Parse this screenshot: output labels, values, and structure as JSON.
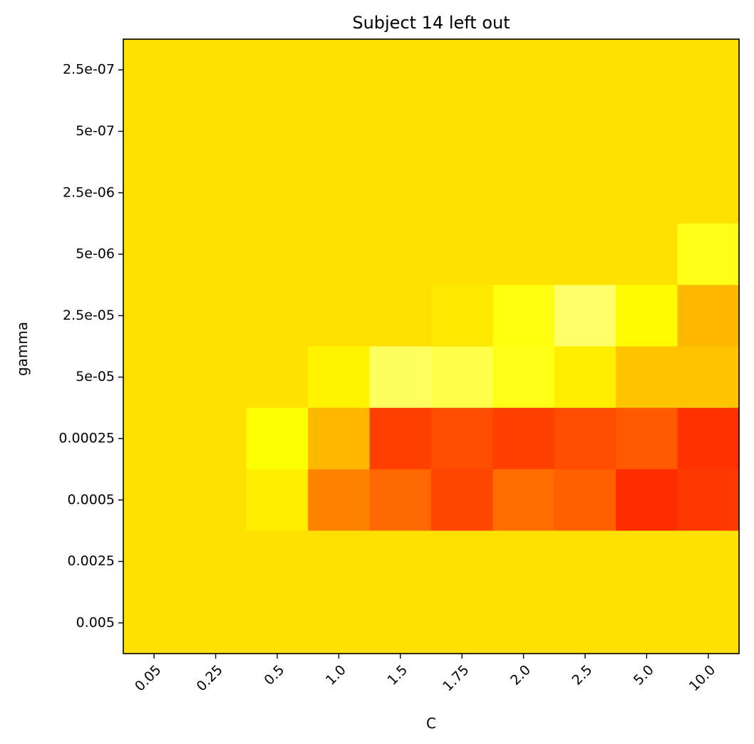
{
  "chart_data": {
    "type": "heatmap",
    "title": "Subject 14 left out",
    "xlabel": "C",
    "ylabel": "gamma",
    "x_categories": [
      "0.05",
      "0.25",
      "0.5",
      "1.0",
      "1.5",
      "1.75",
      "2.0",
      "2.5",
      "5.0",
      "10.0"
    ],
    "y_categories": [
      "2.5e-07",
      "5e-07",
      "2.5e-06",
      "5e-06",
      "2.5e-05",
      "5e-05",
      "0.00025",
      "0.0005",
      "0.0025",
      "0.005"
    ],
    "colormap": "hot",
    "colorbar": false,
    "grid": false,
    "x_tick_rotation": 45,
    "values": [
      [
        0.7,
        0.7,
        0.7,
        0.7,
        0.7,
        0.7,
        0.7,
        0.7,
        0.7,
        0.7
      ],
      [
        0.7,
        0.7,
        0.7,
        0.7,
        0.7,
        0.7,
        0.7,
        0.7,
        0.7,
        0.7
      ],
      [
        0.7,
        0.7,
        0.7,
        0.7,
        0.7,
        0.7,
        0.7,
        0.7,
        0.7,
        0.7
      ],
      [
        0.7,
        0.7,
        0.7,
        0.7,
        0.7,
        0.7,
        0.7,
        0.7,
        0.7,
        0.77
      ],
      [
        0.7,
        0.7,
        0.7,
        0.7,
        0.7,
        0.71,
        0.76,
        0.85,
        0.74,
        0.64
      ],
      [
        0.7,
        0.7,
        0.7,
        0.73,
        0.84,
        0.82,
        0.77,
        0.72,
        0.66,
        0.66
      ],
      [
        0.7,
        0.7,
        0.75,
        0.64,
        0.46,
        0.48,
        0.46,
        0.48,
        0.5,
        0.44
      ],
      [
        0.7,
        0.7,
        0.72,
        0.56,
        0.52,
        0.47,
        0.53,
        0.51,
        0.43,
        0.45
      ],
      [
        0.7,
        0.7,
        0.7,
        0.7,
        0.7,
        0.7,
        0.7,
        0.7,
        0.7,
        0.7
      ],
      [
        0.7,
        0.7,
        0.7,
        0.7,
        0.7,
        0.7,
        0.7,
        0.7,
        0.7,
        0.7
      ]
    ]
  }
}
